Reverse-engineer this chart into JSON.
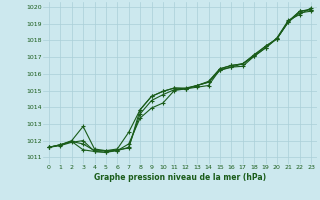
{
  "xlabel": "Graphe pression niveau de la mer (hPa)",
  "xlim": [
    -0.5,
    23.5
  ],
  "ylim": [
    1010.6,
    1020.3
  ],
  "yticks": [
    1011,
    1012,
    1013,
    1014,
    1015,
    1016,
    1017,
    1018,
    1019,
    1020
  ],
  "xticks": [
    0,
    1,
    2,
    3,
    4,
    5,
    6,
    7,
    8,
    9,
    10,
    11,
    12,
    13,
    14,
    15,
    16,
    17,
    18,
    19,
    20,
    21,
    22,
    23
  ],
  "bg_color": "#cce8ee",
  "grid_color": "#aacfd8",
  "line_color": "#1a5c1a",
  "lines": [
    [
      1011.6,
      1011.7,
      1011.9,
      1012.0,
      1011.35,
      1011.3,
      1011.4,
      1011.6,
      1013.6,
      1014.4,
      1014.75,
      1015.05,
      1015.1,
      1015.2,
      1015.3,
      1016.25,
      1016.4,
      1016.45,
      1017.05,
      1017.55,
      1018.1,
      1019.1,
      1019.65,
      1019.75
    ],
    [
      1011.6,
      1011.75,
      1012.0,
      1012.85,
      1011.5,
      1011.4,
      1011.4,
      1011.8,
      1013.35,
      1013.95,
      1014.25,
      1015.0,
      1015.1,
      1015.3,
      1015.5,
      1016.2,
      1016.4,
      1016.6,
      1017.05,
      1017.55,
      1018.15,
      1019.2,
      1019.55,
      1019.95
    ],
    [
      1011.6,
      1011.75,
      1011.95,
      1011.45,
      1011.35,
      1011.3,
      1011.45,
      1011.55,
      1013.85,
      1014.65,
      1014.95,
      1015.15,
      1015.1,
      1015.3,
      1015.5,
      1016.3,
      1016.5,
      1016.6,
      1017.1,
      1017.65,
      1018.1,
      1019.15,
      1019.75,
      1019.85
    ],
    [
      1011.6,
      1011.75,
      1011.95,
      1011.8,
      1011.4,
      1011.4,
      1011.5,
      1012.5,
      1013.85,
      1014.65,
      1014.95,
      1015.15,
      1015.15,
      1015.3,
      1015.55,
      1016.3,
      1016.5,
      1016.6,
      1017.15,
      1017.65,
      1018.1,
      1019.1,
      1019.75,
      1019.85
    ]
  ]
}
